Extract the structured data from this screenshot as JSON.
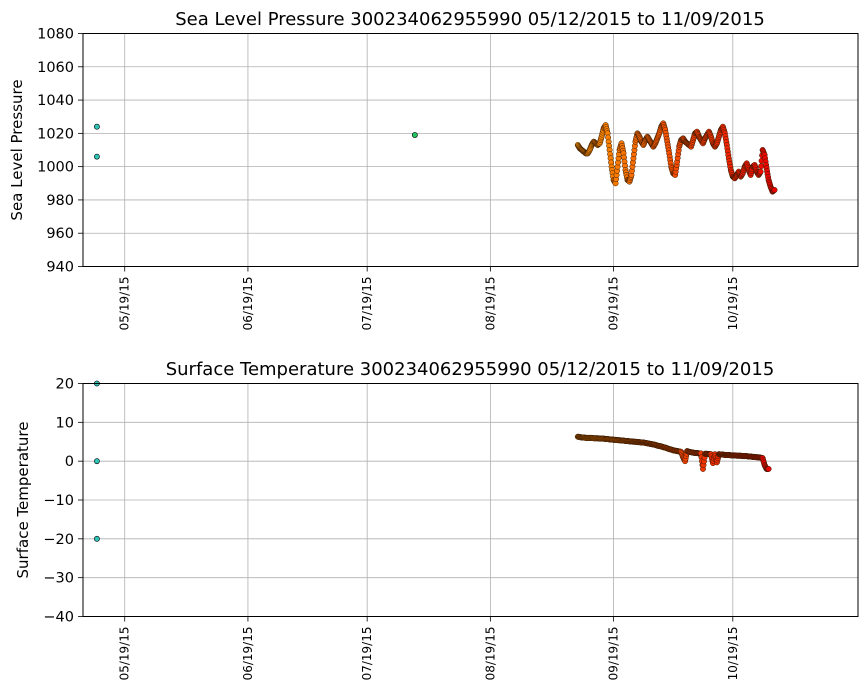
{
  "chart_data": [
    {
      "type": "scatter",
      "title": "Sea Level Pressure 300234062955990  05/12/2015 to 11/09/2015",
      "xlabel": "",
      "ylabel": "Sea Level Pressure",
      "ylim": [
        940,
        1080
      ],
      "yticks": [
        940,
        960,
        980,
        1000,
        1020,
        1040,
        1060,
        1080
      ],
      "xlim_days": [
        -10.5,
        184.5
      ],
      "xticks": [
        {
          "day": 0,
          "label": "05/19/15"
        },
        {
          "day": 31,
          "label": "06/19/15"
        },
        {
          "day": 61,
          "label": "07/19/15"
        },
        {
          "day": 92,
          "label": "08/19/15"
        },
        {
          "day": 123,
          "label": "09/19/15"
        },
        {
          "day": 153,
          "label": "10/19/15"
        }
      ],
      "grid": true,
      "outliers": [
        {
          "day": -7,
          "value": 1024,
          "color": "#2ec4b6"
        },
        {
          "day": -7,
          "value": 1006,
          "color": "#2ec4b6"
        },
        {
          "day": 73,
          "value": 1019,
          "color": "#22c55e"
        }
      ],
      "series": {
        "name": "Sea Level Pressure",
        "day_start": 114,
        "day_step": 0.5,
        "color_start": "#ff9900",
        "color_end": "#ee0000",
        "values": [
          1013,
          1011,
          1010,
          1009,
          1008,
          1008,
          1010,
          1013,
          1015,
          1014,
          1013,
          1014,
          1018,
          1023,
          1025,
          1020,
          1010,
          1000,
          992,
          990,
          1000,
          1010,
          1014,
          1008,
          998,
          992,
          991,
          995,
          1005,
          1015,
          1020,
          1018,
          1015,
          1013,
          1016,
          1018,
          1016,
          1014,
          1012,
          1014,
          1017,
          1020,
          1024,
          1026,
          1022,
          1015,
          1008,
          1000,
          996,
          995,
          1003,
          1012,
          1016,
          1017,
          1015,
          1014,
          1013,
          1012,
          1016,
          1020,
          1021,
          1018,
          1016,
          1014,
          1017,
          1019,
          1021,
          1018,
          1014,
          1012,
          1014,
          1018,
          1022,
          1024,
          1020,
          1013,
          1005,
          998,
          994,
          993,
          995,
          997,
          994,
          996,
          1000,
          1002,
          998,
          995,
          1000,
          1001,
          997,
          995,
          997,
          1010,
          1007,
          999,
          992,
          988,
          985,
          986
        ]
      }
    },
    {
      "type": "scatter",
      "title": "Surface Temperature 300234062955990  05/12/2015 to 11/09/2015",
      "xlabel": "",
      "ylabel": "Surface Temperature",
      "ylim": [
        -40,
        20
      ],
      "yticks": [
        -40,
        -30,
        -20,
        -10,
        0,
        10,
        20
      ],
      "xlim_days": [
        -10.5,
        184.5
      ],
      "xticks": [
        {
          "day": 0,
          "label": "05/19/15"
        },
        {
          "day": 31,
          "label": "06/19/15"
        },
        {
          "day": 61,
          "label": "07/19/15"
        },
        {
          "day": 92,
          "label": "08/19/15"
        },
        {
          "day": 123,
          "label": "09/19/15"
        },
        {
          "day": 153,
          "label": "10/19/15"
        }
      ],
      "grid": true,
      "outliers": [
        {
          "day": -7,
          "value": 20,
          "color": "#2ec4b6"
        },
        {
          "day": -7,
          "value": 0,
          "color": "#2ec4b6"
        },
        {
          "day": -7,
          "value": -20,
          "color": "#2ec4b6"
        }
      ],
      "series": {
        "name": "Surface Temperature",
        "day_start": 114,
        "day_step": 0.5,
        "color_start": "#ff9900",
        "color_end": "#ee0000",
        "values": [
          6.3,
          6.2,
          6.1,
          6.1,
          6.0,
          6.0,
          6.0,
          6.0,
          5.9,
          5.9,
          5.9,
          5.8,
          5.8,
          5.8,
          5.7,
          5.7,
          5.6,
          5.6,
          5.5,
          5.5,
          5.4,
          5.4,
          5.3,
          5.3,
          5.2,
          5.2,
          5.1,
          5.1,
          5.0,
          5.0,
          4.9,
          4.9,
          4.8,
          4.8,
          4.7,
          4.6,
          4.5,
          4.4,
          4.3,
          4.2,
          4.0,
          3.9,
          3.8,
          3.6,
          3.5,
          3.3,
          3.1,
          3.0,
          2.8,
          2.7,
          2.6,
          2.5,
          2.4,
          1.0,
          0.0,
          2.6,
          2.4,
          2.3,
          2.2,
          2.1,
          2.1,
          2.0,
          2.0,
          -2.0,
          1.9,
          1.9,
          1.8,
          1.8,
          -0.5,
          1.8,
          -0.3,
          1.8,
          1.7,
          1.7,
          1.6,
          1.6,
          1.6,
          1.5,
          1.5,
          1.5,
          1.4,
          1.4,
          1.4,
          1.3,
          1.3,
          1.3,
          1.2,
          1.2,
          1.1,
          1.1,
          1.0,
          1.0,
          0.9,
          0.8,
          -1.0,
          -2.0,
          -2.0
        ]
      }
    }
  ]
}
